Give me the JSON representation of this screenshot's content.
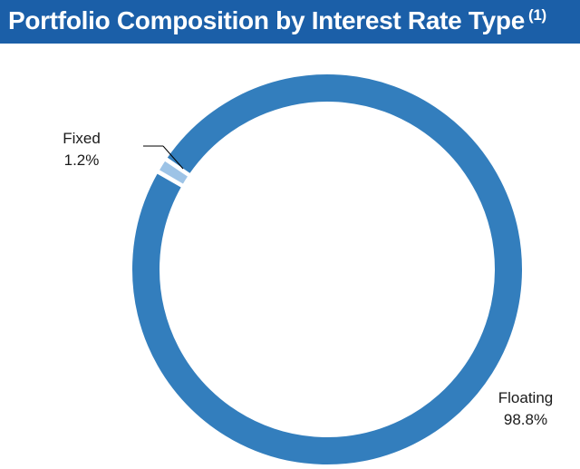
{
  "header": {
    "title": "Portfolio Composition by Interest Rate Type",
    "footnote_marker": "(1)"
  },
  "colors": {
    "header_background": "#1b5fa8",
    "floating": "#337ebd",
    "fixed": "#9dc3e6"
  },
  "chart_data": {
    "type": "pie",
    "style": "donut",
    "title": "Portfolio Composition by Interest Rate Type",
    "slices": [
      {
        "name": "Fixed",
        "value": 1.2,
        "label": "1.2%",
        "color": "#9dc3e6"
      },
      {
        "name": "Floating",
        "value": 98.8,
        "label": "98.8%",
        "color": "#337ebd"
      }
    ],
    "legend": "none",
    "unit": "%"
  }
}
